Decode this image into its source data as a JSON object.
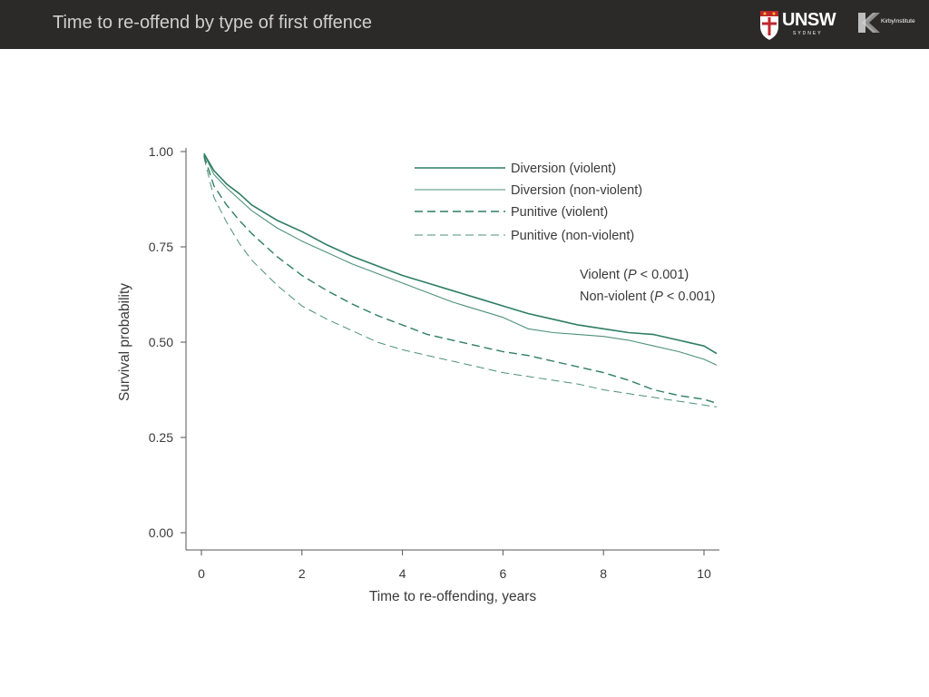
{
  "header": {
    "title": "Time to re-offend by type of first offence",
    "logos": {
      "unsw": {
        "name": "UNSW",
        "sub": "SYDNEY",
        "icon": "unsw-crest-icon"
      },
      "kirby": {
        "name": "KirbyInstitute",
        "icon": "kirby-k-icon"
      }
    },
    "background": "#2b2a28"
  },
  "chart_data": {
    "type": "line",
    "title": "",
    "xlabel": "Time to re-offending, years",
    "ylabel": "Survival probability",
    "xlim": [
      0,
      10.3
    ],
    "ylim": [
      0,
      1
    ],
    "xticks": [
      0,
      2,
      4,
      6,
      8,
      10
    ],
    "xtick_labels": [
      "0",
      "2",
      "4",
      "6",
      "8",
      "10"
    ],
    "yticks": [
      0,
      0.25,
      0.5,
      0.75,
      1
    ],
    "ytick_labels": [
      "0.00",
      "0.25",
      "0.50",
      "0.75",
      "1.00"
    ],
    "grid": false,
    "legend_position": "top-right",
    "annotations": [
      "Violent (P < 0.001)",
      "Non-violent (P < 0.001)"
    ],
    "color": "#2e7d60",
    "series": [
      {
        "name": "Diversion (violent)",
        "style": "solid",
        "weight": "heavy",
        "x": [
          0.05,
          0.25,
          0.5,
          0.75,
          1.0,
          1.5,
          2.0,
          2.5,
          3.0,
          3.5,
          4.0,
          4.5,
          5.0,
          5.5,
          6.0,
          6.5,
          7.0,
          7.5,
          8.0,
          8.5,
          9.0,
          9.5,
          10.0,
          10.25
        ],
        "y": [
          0.995,
          0.95,
          0.915,
          0.89,
          0.86,
          0.82,
          0.79,
          0.755,
          0.725,
          0.7,
          0.675,
          0.655,
          0.635,
          0.615,
          0.595,
          0.575,
          0.56,
          0.545,
          0.535,
          0.525,
          0.52,
          0.505,
          0.49,
          0.47
        ]
      },
      {
        "name": "Diversion (non-violent)",
        "style": "solid",
        "weight": "light",
        "x": [
          0.05,
          0.25,
          0.5,
          0.75,
          1.0,
          1.5,
          2.0,
          2.5,
          3.0,
          3.5,
          4.0,
          4.5,
          5.0,
          5.5,
          6.0,
          6.5,
          7.0,
          7.5,
          8.0,
          8.5,
          9.0,
          9.5,
          10.0,
          10.25
        ],
        "y": [
          0.995,
          0.94,
          0.905,
          0.875,
          0.845,
          0.8,
          0.765,
          0.735,
          0.705,
          0.68,
          0.655,
          0.63,
          0.605,
          0.585,
          0.565,
          0.535,
          0.525,
          0.52,
          0.515,
          0.505,
          0.49,
          0.475,
          0.455,
          0.44
        ]
      },
      {
        "name": "Punitive (violent)",
        "style": "dashed",
        "weight": "heavy",
        "x": [
          0.05,
          0.25,
          0.5,
          0.75,
          1.0,
          1.5,
          2.0,
          2.5,
          3.0,
          3.5,
          4.0,
          4.5,
          5.0,
          5.5,
          6.0,
          6.5,
          7.0,
          7.5,
          8.0,
          8.5,
          9.0,
          9.5,
          10.0,
          10.25
        ],
        "y": [
          0.99,
          0.91,
          0.86,
          0.82,
          0.785,
          0.725,
          0.675,
          0.635,
          0.6,
          0.57,
          0.545,
          0.52,
          0.505,
          0.49,
          0.475,
          0.465,
          0.45,
          0.435,
          0.42,
          0.4,
          0.375,
          0.36,
          0.35,
          0.34
        ]
      },
      {
        "name": "Punitive (non-violent)",
        "style": "dashed",
        "weight": "light",
        "x": [
          0.05,
          0.25,
          0.5,
          0.75,
          1.0,
          1.5,
          2.0,
          2.5,
          3.0,
          3.5,
          4.0,
          4.5,
          5.0,
          5.5,
          6.0,
          6.5,
          7.0,
          7.5,
          8.0,
          8.5,
          9.0,
          9.5,
          10.0,
          10.25
        ],
        "y": [
          0.985,
          0.88,
          0.815,
          0.76,
          0.715,
          0.65,
          0.595,
          0.56,
          0.53,
          0.5,
          0.48,
          0.465,
          0.45,
          0.435,
          0.42,
          0.41,
          0.4,
          0.39,
          0.375,
          0.365,
          0.355,
          0.345,
          0.335,
          0.33
        ]
      }
    ]
  }
}
